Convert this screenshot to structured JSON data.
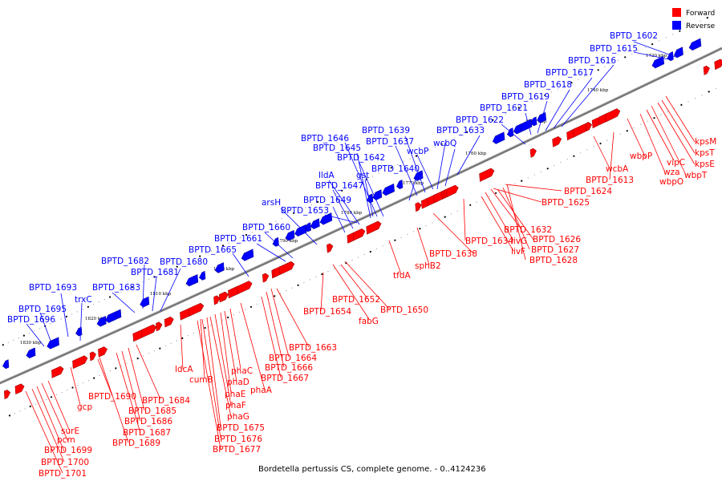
{
  "caption": "Bordetella pertussis CS, complete genome. - 0..4124236",
  "legend": [
    {
      "label": "Forward",
      "color": "#ff0000"
    },
    {
      "label": "Reverse",
      "color": "#0000ff"
    }
  ],
  "colors": {
    "forward": "#ff0000",
    "reverse": "#0000ff",
    "backbone": "#666666"
  },
  "ticks": [
    "1730 kbp",
    "1740 kbp",
    "1750 kbp",
    "1760 kbp",
    "1770 kbp",
    "1780 kbp",
    "1790 kbp",
    "1800 kbp",
    "1810 kbp",
    "1820 kbp",
    "1830 kbp"
  ],
  "reverse_labels": [
    "BPTD_1602",
    "BPTD_1615",
    "BPTD_1616",
    "BPTD_1617",
    "BPTD_1618",
    "BPTD_1619",
    "BPTD_1621",
    "BPTD_1622",
    "BPTD_1633",
    "wcbQ",
    "BPTD_1639",
    "BPTD_1637",
    "wcbP",
    "BPTD_1640",
    "BPTD_1646",
    "BPTD_1645",
    "BPTD_1642",
    "gst",
    "lldA",
    "BPTD_1647",
    "BPTD_1649",
    "arsH",
    "BPTD_1653",
    "BPTD_1660",
    "BPTD_1661",
    "BPTD_1665",
    "BPTD_1682",
    "BPTD_1680",
    "BPTD_1681",
    "BPTD_1683",
    "BPTD_1693",
    "trxC",
    "BPTD_1695",
    "BPTD_1696"
  ],
  "forward_labels": [
    "kpsM",
    "kpsT",
    "kpsE",
    "vipC",
    "wbpT",
    "wza",
    "wbpO",
    "wbpP",
    "wcbA",
    "BPTD_1613",
    "BPTD_1624",
    "BPTD_1625",
    "BPTD_1632",
    "livG",
    "BPTD_1626",
    "livF",
    "BPTD_1627",
    "BPTD_1628",
    "BPTD_1634",
    "BPTD_1638",
    "sphB2",
    "tfdA",
    "BPTD_1652",
    "fabG",
    "BPTD_1650",
    "BPTD_1654",
    "BPTD_1663",
    "BPTD_1664",
    "BPTD_1666",
    "BPTD_1667",
    "phaA",
    "phaC",
    "phaD",
    "phaE",
    "phaF",
    "phaG",
    "cumB",
    "ldcA",
    "BPTD_1675",
    "BPTD_1676",
    "BPTD_1677",
    "BPTD_1684",
    "BPTD_1685",
    "BPTD_1686",
    "BPTD_1687",
    "BPTD_1689",
    "BPTD_1690",
    "gcp",
    "surE",
    "pcm",
    "BPTD_1699",
    "BPTD_1700",
    "BPTD_1701"
  ]
}
